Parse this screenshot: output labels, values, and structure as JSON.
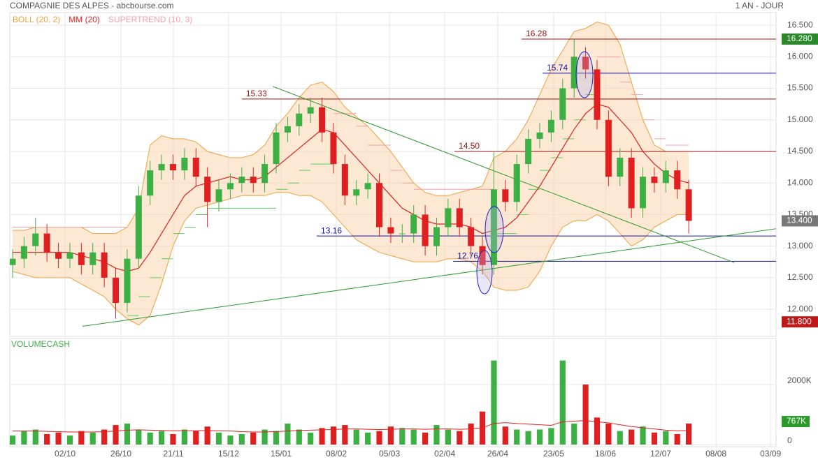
{
  "header": {
    "title": "COMPAGNIE DES ALPES - abcbourse.com",
    "period": "1 AN - JOUR"
  },
  "chart_data": [
    {
      "type": "candlestick",
      "legend": [
        {
          "name": "BOLL (20, 2)",
          "color": "#f0a040"
        },
        {
          "name": "MM (20)",
          "color": "#e02020"
        },
        {
          "name": "SUPERTREND (10, 3)",
          "color": "#f4a0a8"
        }
      ],
      "xlim": [
        0,
        66.62
      ],
      "xticks": [
        {
          "value": 4.58,
          "label": "02/10"
        },
        {
          "value": 9.46,
          "label": "26/10"
        },
        {
          "value": 14.03,
          "label": "21/11"
        },
        {
          "value": 18.85,
          "label": "15/12"
        },
        {
          "value": 23.43,
          "label": "15/01"
        },
        {
          "value": 28.25,
          "label": "08/02"
        },
        {
          "value": 32.89,
          "label": "05/03"
        },
        {
          "value": 37.71,
          "label": "02/04"
        },
        {
          "value": 42.34,
          "label": "26/04"
        },
        {
          "value": 47.22,
          "label": "23/05"
        },
        {
          "value": 51.74,
          "label": "18/06"
        },
        {
          "value": 56.56,
          "label": "12/07"
        },
        {
          "value": 61.38,
          "label": "08/08"
        },
        {
          "value": 66.14,
          "label": "03/09"
        }
      ],
      "ylim": [
        11.57,
        16.7
      ],
      "yticks": [
        {
          "value": 12,
          "label": "12.000"
        },
        {
          "value": 12.5,
          "label": "12.500"
        },
        {
          "value": 13,
          "label": "13.000"
        },
        {
          "value": 13.5,
          "label": "13.500"
        },
        {
          "value": 14,
          "label": "14.000"
        },
        {
          "value": 14.5,
          "label": "14.500"
        },
        {
          "value": 15,
          "label": "15.000"
        },
        {
          "value": 15.5,
          "label": "15.500"
        },
        {
          "value": 16,
          "label": "16.000"
        },
        {
          "value": 16.5,
          "label": "16.500"
        }
      ],
      "grid": true,
      "up_color": "#3cb043",
      "down_color": "#e02020",
      "open": [
        12.7,
        12.8,
        13.0,
        13.2,
        12.9,
        12.8,
        12.9,
        12.7,
        12.9,
        12.5,
        12.1,
        12.8,
        13.8,
        14.2,
        14.3,
        14.2,
        14.4,
        14.1,
        13.7,
        13.9,
        14.0,
        14.1,
        14.0,
        14.3,
        14.8,
        14.9,
        15.1,
        15.2,
        14.8,
        14.3,
        13.8,
        13.9,
        14.0,
        13.3,
        13.2,
        13.2,
        13.5,
        13.0,
        13.3,
        13.6,
        13.3,
        13.0,
        12.7,
        13.9,
        13.7,
        14.3,
        14.7,
        14.8,
        15.0,
        15.5,
        16.0,
        15.8,
        15.0,
        14.1,
        14.4,
        13.6,
        14.1,
        14.0,
        14.2,
        13.9
      ],
      "high": [
        12.95,
        13.15,
        13.45,
        13.35,
        13.05,
        13.05,
        13.05,
        13.05,
        13.05,
        12.65,
        12.95,
        13.95,
        14.35,
        14.45,
        14.45,
        14.55,
        14.55,
        14.25,
        14.05,
        14.15,
        14.25,
        14.25,
        14.45,
        14.95,
        15.05,
        15.25,
        15.35,
        15.35,
        14.95,
        14.45,
        14.05,
        14.15,
        14.15,
        13.45,
        13.35,
        13.65,
        13.65,
        13.45,
        13.75,
        13.75,
        13.45,
        13.15,
        14.5,
        14.05,
        14.45,
        14.85,
        14.95,
        15.15,
        15.65,
        16.28,
        16.15,
        15.95,
        15.15,
        14.55,
        14.55,
        14.25,
        14.25,
        14.35,
        14.35,
        14.05
      ],
      "low": [
        12.5,
        12.65,
        12.85,
        12.75,
        12.65,
        12.65,
        12.55,
        12.55,
        12.35,
        11.85,
        11.95,
        12.65,
        13.65,
        14.05,
        14.05,
        14.05,
        13.95,
        13.3,
        13.55,
        13.75,
        13.85,
        13.85,
        13.85,
        14.15,
        14.65,
        14.75,
        14.95,
        14.65,
        14.15,
        13.65,
        13.65,
        13.75,
        13.15,
        13.05,
        13.05,
        13.05,
        12.85,
        12.85,
        13.15,
        13.15,
        12.85,
        12.55,
        12.55,
        13.55,
        13.55,
        14.15,
        14.55,
        14.65,
        14.85,
        15.35,
        15.65,
        14.85,
        13.95,
        13.95,
        13.45,
        13.45,
        13.85,
        13.85,
        13.75,
        13.2
      ],
      "close": [
        12.8,
        13.0,
        13.2,
        12.9,
        12.8,
        12.9,
        12.7,
        12.9,
        12.5,
        12.1,
        12.8,
        13.8,
        14.2,
        14.3,
        14.2,
        14.4,
        14.1,
        13.7,
        13.9,
        14.0,
        14.1,
        14.0,
        14.3,
        14.8,
        14.9,
        15.1,
        15.2,
        14.8,
        14.3,
        13.8,
        13.9,
        14.0,
        13.3,
        13.2,
        13.2,
        13.5,
        13.0,
        13.3,
        13.6,
        13.3,
        13.0,
        12.7,
        13.9,
        13.7,
        14.3,
        14.7,
        14.8,
        15.0,
        15.5,
        16.0,
        15.8,
        15.0,
        14.1,
        14.4,
        13.6,
        14.1,
        14.0,
        14.2,
        13.9,
        13.4
      ],
      "boll_upper": [
        13.25,
        13.25,
        13.3,
        13.3,
        13.3,
        13.3,
        13.3,
        13.2,
        13.2,
        13.2,
        13.3,
        13.6,
        14.6,
        14.75,
        14.7,
        14.7,
        14.65,
        14.5,
        14.45,
        14.4,
        14.4,
        14.45,
        14.6,
        14.9,
        15.1,
        15.35,
        15.55,
        15.6,
        15.45,
        15.2,
        15.05,
        14.9,
        14.7,
        14.5,
        14.25,
        14.0,
        13.85,
        13.8,
        13.8,
        13.85,
        13.9,
        13.95,
        14.4,
        14.5,
        14.7,
        15.0,
        15.4,
        15.8,
        16.1,
        16.4,
        16.45,
        16.55,
        16.5,
        16.2,
        15.6,
        15.0,
        14.6,
        14.5,
        14.5,
        14.5
      ],
      "boll_lower": [
        12.6,
        12.55,
        12.5,
        12.5,
        12.5,
        12.5,
        12.4,
        12.3,
        12.2,
        12.0,
        11.85,
        11.75,
        11.9,
        12.4,
        13.0,
        13.4,
        13.6,
        13.65,
        13.7,
        13.75,
        13.8,
        13.8,
        13.8,
        13.85,
        13.85,
        13.8,
        13.8,
        13.7,
        13.5,
        13.3,
        13.1,
        13.0,
        12.9,
        12.85,
        12.8,
        12.75,
        12.75,
        12.75,
        12.8,
        12.8,
        12.75,
        12.6,
        12.35,
        12.3,
        12.3,
        12.35,
        12.6,
        13.0,
        13.3,
        13.4,
        13.4,
        13.5,
        13.4,
        13.2,
        13.0,
        13.1,
        13.3,
        13.4,
        13.5,
        13.5
      ],
      "ma": [
        12.9,
        12.9,
        12.9,
        12.9,
        12.9,
        12.9,
        12.85,
        12.8,
        12.75,
        12.65,
        12.6,
        12.65,
        12.9,
        13.2,
        13.5,
        13.8,
        13.95,
        14.0,
        14.05,
        14.1,
        14.05,
        14.05,
        14.1,
        14.25,
        14.4,
        14.55,
        14.7,
        14.85,
        14.8,
        14.6,
        14.4,
        14.2,
        14.0,
        13.8,
        13.6,
        13.5,
        13.4,
        13.35,
        13.35,
        13.35,
        13.3,
        13.2,
        13.25,
        13.3,
        13.45,
        13.7,
        13.95,
        14.25,
        14.55,
        14.85,
        15.1,
        15.25,
        15.2,
        15.0,
        14.8,
        14.5,
        14.3,
        14.15,
        14.05,
        14.0
      ],
      "supertrend": [
        13.3,
        13.3,
        13.3,
        13.3,
        13.3,
        13.3,
        13.3,
        13.3,
        13.3,
        13.3,
        11.9,
        12.2,
        12.5,
        12.8,
        13.2,
        13.3,
        13.5,
        13.6,
        13.6,
        13.6,
        13.6,
        13.6,
        13.6,
        13.9,
        14.0,
        14.2,
        14.3,
        14.3,
        15.1,
        15.1,
        14.9,
        14.6,
        14.6,
        14.2,
        14.0,
        13.9,
        13.9,
        13.9,
        13.9,
        13.9,
        13.9,
        13.9,
        13.2,
        13.2,
        13.5,
        13.9,
        14.2,
        14.4,
        14.7,
        15.0,
        15.4,
        16.0,
        16.0,
        15.6,
        15.4,
        15.0,
        14.7,
        14.6,
        14.6,
        14.6
      ],
      "supertrend_colors": {
        "bear": "#f4a0a8",
        "bull": "#5ad05a"
      },
      "levels": [
        {
          "value": 16.28,
          "x0": 44.42,
          "color": "#a01010"
        },
        {
          "value": 15.74,
          "x0": 46.25,
          "color": "#1010b0"
        },
        {
          "value": 15.33,
          "x0": 20.0,
          "color": "#a01010"
        },
        {
          "value": 14.5,
          "label": "14.50",
          "x0": 38.56,
          "color": "#a01010"
        },
        {
          "value": 13.16,
          "x0": 26.54,
          "color": "#1010b0"
        },
        {
          "value": 12.76,
          "x0": 38.44,
          "color": "#1010b0"
        }
      ],
      "trendlines": [
        {
          "x": [
            6.1,
            67.2
          ],
          "y": [
            11.73,
            13.29
          ],
          "color": "#2a9a2a"
        },
        {
          "x": [
            22.7,
            62.97
          ],
          "y": [
            15.53,
            12.74
          ],
          "color": "#2a9a2a"
        }
      ],
      "price_tags": [
        {
          "value": 16.28,
          "label": "16.280",
          "color": "#2a8a2a"
        },
        {
          "value": 13.4,
          "label": "13.400",
          "color": "#777777"
        },
        {
          "value": 11.8,
          "label": "11.800",
          "color": "#c01818"
        }
      ]
    },
    {
      "type": "bar",
      "title": "VOLUMECASH",
      "title_color": "#3cb043",
      "ylim": [
        0,
        3535
      ],
      "yticks": [
        0,
        {
          "value": 2000,
          "label": "2000K"
        }
      ],
      "values": [
        300,
        450,
        500,
        350,
        400,
        300,
        450,
        400,
        500,
        650,
        700,
        500,
        400,
        450,
        350,
        500,
        450,
        600,
        400,
        300,
        350,
        400,
        500,
        450,
        700,
        500,
        400,
        550,
        600,
        650,
        500,
        400,
        450,
        600,
        550,
        500,
        400,
        650,
        500,
        450,
        700,
        1100,
        2800,
        600,
        500,
        450,
        500,
        550,
        2800,
        700,
        2000,
        900,
        700,
        450,
        500,
        600,
        400,
        450,
        350,
        700
      ],
      "ma": [
        450,
        450,
        450,
        440,
        430,
        420,
        420,
        420,
        430,
        450,
        480,
        490,
        480,
        470,
        460,
        460,
        460,
        470,
        460,
        450,
        430,
        420,
        420,
        430,
        450,
        470,
        480,
        490,
        500,
        520,
        520,
        510,
        500,
        510,
        520,
        520,
        510,
        520,
        520,
        510,
        520,
        560,
        700,
        730,
        700,
        680,
        660,
        640,
        760,
        780,
        800,
        760,
        720,
        660,
        600,
        560,
        520,
        480,
        460,
        470
      ],
      "ma_color": "#e02020",
      "tag": {
        "value": 767,
        "label": "767K",
        "color": "#2a9a2a"
      }
    }
  ]
}
